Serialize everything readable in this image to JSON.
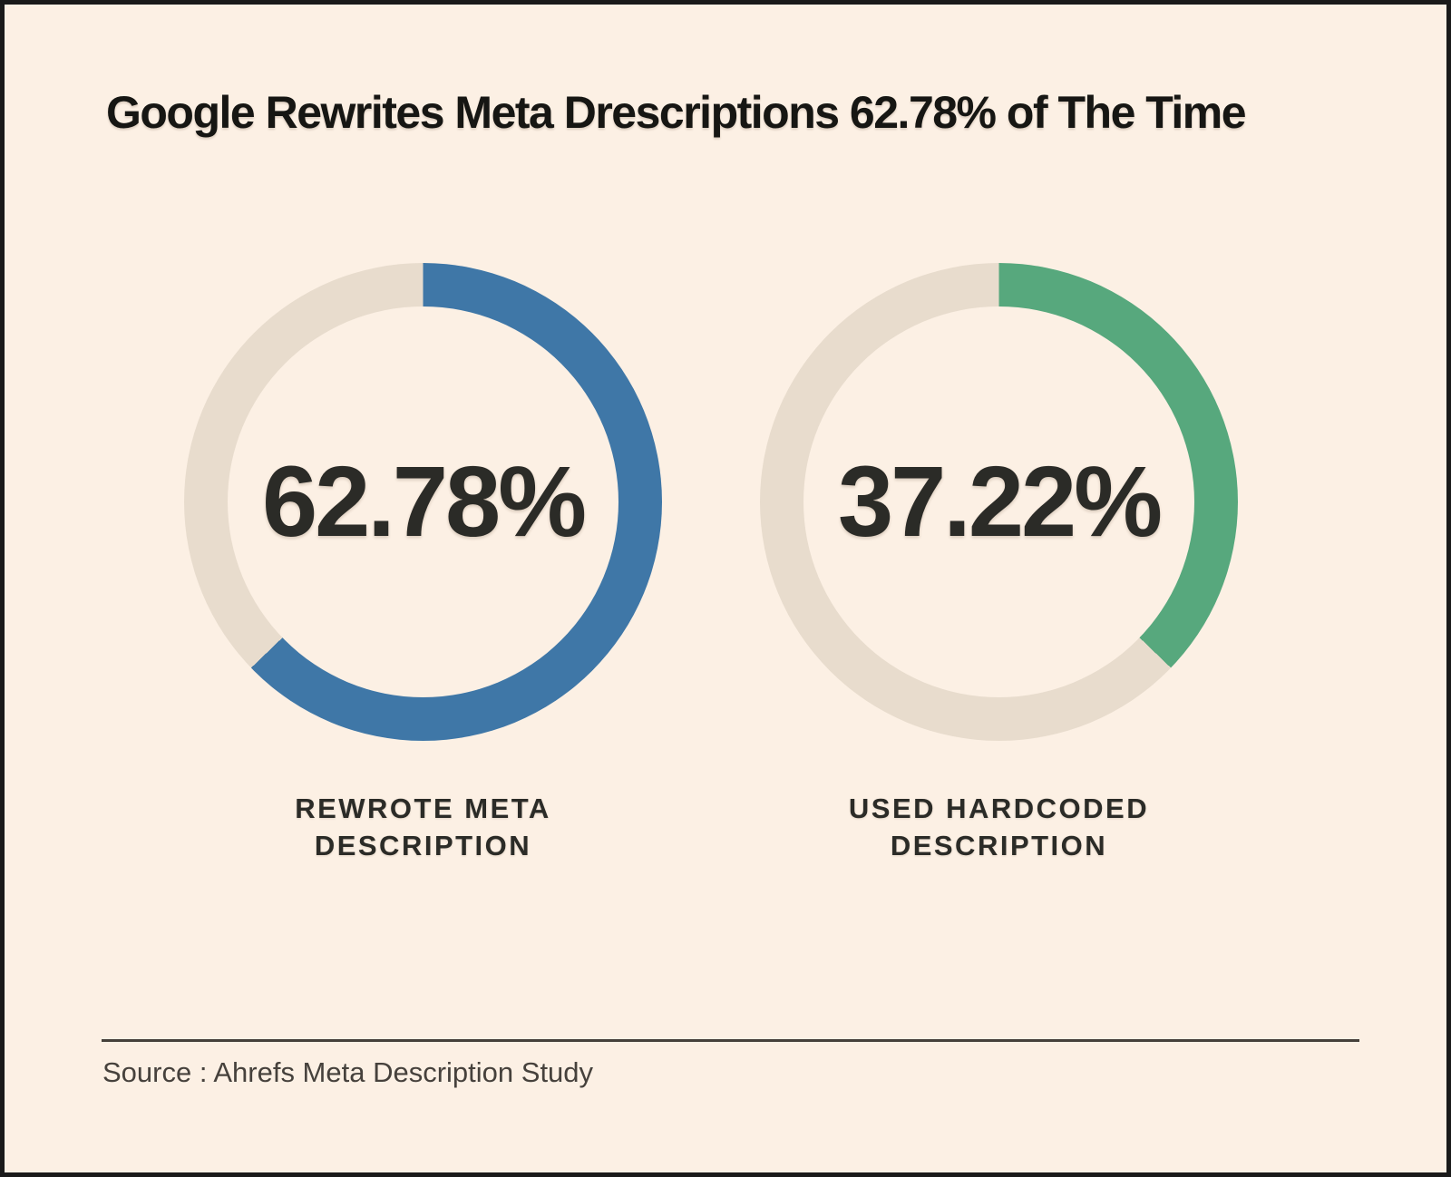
{
  "header": {
    "title": "Google Rewrites Meta Drescriptions 62.78% of The Time"
  },
  "footer": {
    "source": "Source : Ahrefs Meta Description Study"
  },
  "colors": {
    "background": "#fcf0e4",
    "frame_border": "#1a1a1a",
    "donut_track": "#e8dccd",
    "accent_blue": "#3f77a7",
    "accent_green": "#57a87d",
    "text_dark": "#2b2b27"
  },
  "chart_data": [
    {
      "type": "pie",
      "variant": "donut",
      "value_pct": 62.78,
      "center_label": "62.78%",
      "label": "REWROTE META DESCRIPTION",
      "label_lines": [
        "REWROTE META",
        "DESCRIPTION"
      ],
      "color": "#3f77a7",
      "track_color": "#e8dccd",
      "start": "12-o-clock",
      "direction": "clockwise"
    },
    {
      "type": "pie",
      "variant": "donut",
      "value_pct": 37.22,
      "center_label": "37.22%",
      "label": "USED HARDCODED DESCRIPTION",
      "label_lines": [
        "USED HARDCODED",
        "DESCRIPTION"
      ],
      "color": "#57a87d",
      "track_color": "#e8dccd",
      "start": "12-o-clock",
      "direction": "clockwise"
    }
  ]
}
